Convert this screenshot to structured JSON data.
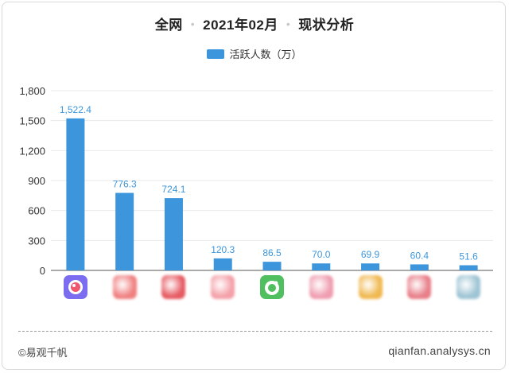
{
  "header": {
    "scope": "全网",
    "period": "2021年02月",
    "analysis": "现状分析",
    "separator": "•"
  },
  "legend": {
    "label": "活跃人数（万）"
  },
  "footer": {
    "brand": "©易观千帆",
    "site": "qianfan.analysys.cn"
  },
  "chart_data": {
    "type": "bar",
    "categories": [
      "app-1",
      "app-2",
      "app-3",
      "app-4",
      "app-5",
      "app-6",
      "app-7",
      "app-8",
      "app-9"
    ],
    "series": [
      {
        "name": "活跃人数（万）",
        "values": [
          1522.4,
          776.3,
          724.1,
          120.3,
          86.5,
          70.0,
          69.9,
          60.4,
          51.6
        ]
      }
    ],
    "value_labels": [
      "1,522.4",
      "776.3",
      "724.1",
      "120.3",
      "86.5",
      "70.0",
      "69.9",
      "60.4",
      "51.6"
    ],
    "y_ticks": [
      "0",
      "300",
      "600",
      "900",
      "1,200",
      "1,500",
      "1,800"
    ],
    "ylim": [
      0,
      1800
    ],
    "grid": true,
    "colors": {
      "bar": "#3d96db",
      "label": "#3d96db",
      "grid": "#e9e9e9",
      "axis": "#555555"
    }
  },
  "icons": [
    {
      "name": "app-icon-pregnancy",
      "color": "#7b6cf0",
      "inner": "#f0566e"
    },
    {
      "name": "app-icon-pink-blurred",
      "color": "#f08080"
    },
    {
      "name": "app-icon-red-blurred",
      "color": "#e65a62"
    },
    {
      "name": "app-icon-rose-blurred",
      "color": "#f4a0a8"
    },
    {
      "name": "app-icon-green-face",
      "color": "#4fbf5f"
    },
    {
      "name": "app-icon-pink-blurred-2",
      "color": "#ef9db0"
    },
    {
      "name": "app-icon-yellow-blurred",
      "color": "#f0b850"
    },
    {
      "name": "app-icon-crimson-blurred",
      "color": "#e87e88"
    },
    {
      "name": "app-icon-colorful-blurred",
      "color": "#9ec4d4"
    }
  ]
}
